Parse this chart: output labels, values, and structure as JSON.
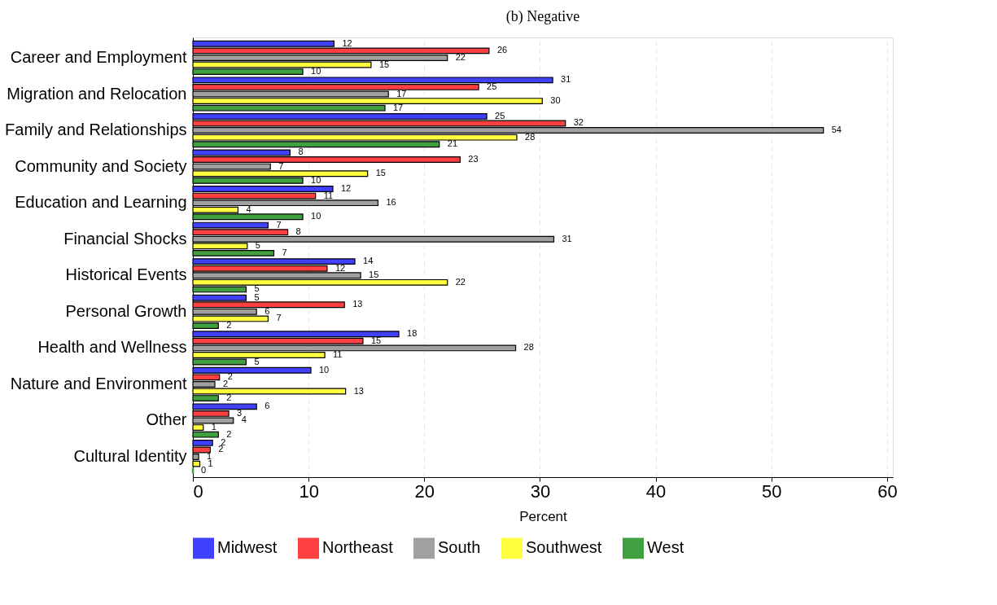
{
  "chart_data": {
    "type": "bar",
    "orientation": "horizontal",
    "title": "(b) Negative",
    "xlabel": "Percent",
    "categories": [
      "Career and Employment",
      "Migration and Relocation",
      "Family and Relationships",
      "Community and Society",
      "Education and Learning",
      "Financial Shocks",
      "Historical Events",
      "Personal Growth",
      "Health and Wellness",
      "Nature and Environment",
      "Other",
      "Cultural Identity"
    ],
    "series": [
      {
        "name": "Midwest",
        "color": "#4040ff",
        "values": [
          12.2,
          31.1,
          25.4,
          8.4,
          12.1,
          6.5,
          14.0,
          4.6,
          17.8,
          10.2,
          5.5,
          1.7
        ],
        "value_labels": [
          "12",
          "31",
          "25",
          "8",
          "12",
          "7",
          "14",
          "5",
          "18",
          "10",
          "6",
          "2"
        ]
      },
      {
        "name": "Northeast",
        "color": "#ff4040",
        "values": [
          25.6,
          24.7,
          32.2,
          23.1,
          10.6,
          8.2,
          11.6,
          13.1,
          14.7,
          2.3,
          3.1,
          1.5
        ],
        "value_labels": [
          "26",
          "25",
          "32",
          "23",
          "11",
          "8",
          "12",
          "13",
          "15",
          "2",
          "3",
          "2"
        ]
      },
      {
        "name": "South",
        "color": "#a0a0a0",
        "values": [
          22.0,
          16.9,
          54.5,
          6.7,
          16.0,
          31.2,
          14.5,
          5.5,
          27.9,
          1.9,
          3.5,
          0.5
        ],
        "value_labels": [
          "22",
          "17",
          "54",
          "7",
          "16",
          "31",
          "15",
          "6",
          "28",
          "2",
          "4",
          "1"
        ]
      },
      {
        "name": "Southwest",
        "color": "#ffff40",
        "values": [
          15.4,
          30.2,
          28.0,
          15.1,
          3.9,
          4.7,
          22.0,
          6.5,
          11.4,
          13.2,
          0.9,
          0.6
        ],
        "value_labels": [
          "15",
          "30",
          "28",
          "15",
          "4",
          "5",
          "22",
          "7",
          "11",
          "13",
          "1",
          "1"
        ]
      },
      {
        "name": "West",
        "color": "#40a040",
        "values": [
          9.5,
          16.6,
          21.3,
          9.5,
          9.5,
          7.0,
          4.6,
          2.2,
          4.6,
          2.2,
          2.2,
          0.0
        ],
        "value_labels": [
          "10",
          "17",
          "21",
          "10",
          "10",
          "7",
          "5",
          "2",
          "5",
          "2",
          "2",
          "0"
        ]
      }
    ],
    "xlim": [
      0,
      60.5
    ],
    "xticks": [
      0,
      10,
      20,
      30,
      40,
      50,
      60
    ],
    "grid": "x",
    "legend": "bottom"
  }
}
